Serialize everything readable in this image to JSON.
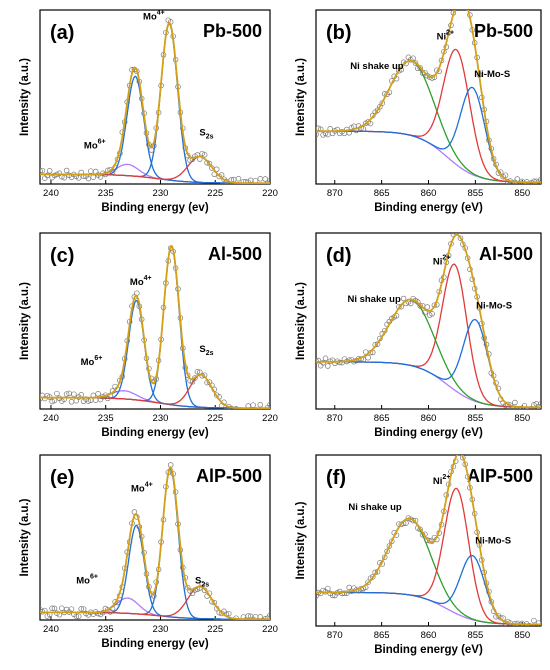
{
  "chart_data": [
    {
      "id": "a",
      "type": "line",
      "panel_label": "(a)",
      "title": "Pb-500",
      "xlabel": "Binding energy (ev)",
      "ylabel": "Intensity (a.u.)",
      "xlim": [
        241,
        220
      ],
      "ylim": [
        0,
        1.08
      ],
      "x_reversed": true,
      "xticks": [
        240,
        235,
        230,
        225,
        220
      ],
      "components": [
        {
          "name": "Mo6+",
          "color": "#b07cff",
          "center": 233.0,
          "height": 0.07,
          "width": 1.0
        },
        {
          "name": "Mo4+ 3d3/2",
          "color": "#1f6fd6",
          "center": 232.3,
          "height": 0.62,
          "width": 0.75
        },
        {
          "name": "Mo4+ 3d5/2",
          "color": "#1f6fd6",
          "center": 229.2,
          "height": 0.97,
          "width": 0.75
        },
        {
          "name": "S2s",
          "color": "#e03a3a",
          "center": 226.4,
          "height": 0.16,
          "width": 1.1
        }
      ],
      "background": {
        "color": "#e8a23a",
        "start": 0.06,
        "end": 0.005
      },
      "fit_color": "#d4a017",
      "annotations": [
        {
          "x": 236.0,
          "y": 0.22,
          "text": "Mo",
          "sup": "6+"
        },
        {
          "x": 230.6,
          "y": 1.02,
          "text": "Mo",
          "sup": "4+"
        },
        {
          "x": 225.8,
          "y": 0.3,
          "text": "S",
          "sub": "2s"
        }
      ]
    },
    {
      "id": "b",
      "type": "line",
      "panel_label": "(b)",
      "title": "Pb-500",
      "xlabel": "Binding energy (eV)",
      "ylabel": "Intensity (a.u.)",
      "xlim": [
        872,
        848
      ],
      "ylim": [
        0,
        1.12
      ],
      "x_reversed": true,
      "xticks": [
        870,
        865,
        860,
        855,
        850
      ],
      "components": [
        {
          "name": "Ni shake up",
          "color": "#2ca02c",
          "center": 861.8,
          "height": 0.48,
          "width": 2.3
        },
        {
          "name": "Ni2+",
          "color": "#e03a3a",
          "center": 857.0,
          "height": 0.74,
          "width": 1.4
        },
        {
          "name": "Ni-Mo-S",
          "color": "#1f6fd6",
          "center": 855.3,
          "height": 0.56,
          "width": 1.3
        }
      ],
      "background": {
        "color": "#b07cff",
        "start": 0.34,
        "end": 0.01
      },
      "fit_color": "#d4a017",
      "annotations": [
        {
          "x": 865.5,
          "y": 0.74,
          "text": "Ni shake up"
        },
        {
          "x": 858.2,
          "y": 0.93,
          "text": "Ni",
          "sup": "2+"
        },
        {
          "x": 853.2,
          "y": 0.69,
          "text": "Ni-Mo-S"
        }
      ]
    },
    {
      "id": "c",
      "type": "line",
      "panel_label": "(c)",
      "title": "Al-500",
      "xlabel": "Binding energy (ev)",
      "ylabel": "Intensity (a.u.)",
      "xlim": [
        241,
        220
      ],
      "ylim": [
        0,
        1.08
      ],
      "x_reversed": true,
      "xticks": [
        240,
        235,
        230,
        225,
        220
      ],
      "components": [
        {
          "name": "Mo6+",
          "color": "#b07cff",
          "center": 233.3,
          "height": 0.05,
          "width": 1.1
        },
        {
          "name": "Mo4+ 3d3/2",
          "color": "#1f6fd6",
          "center": 232.2,
          "height": 0.61,
          "width": 0.7
        },
        {
          "name": "Mo4+ 3d5/2",
          "color": "#1f6fd6",
          "center": 229.0,
          "height": 0.97,
          "width": 0.7
        },
        {
          "name": "S2s",
          "color": "#e03a3a",
          "center": 226.3,
          "height": 0.2,
          "width": 1.0
        }
      ],
      "background": {
        "color": "#e8a23a",
        "start": 0.07,
        "end": 0.005
      },
      "fit_color": "#d4a017",
      "annotations": [
        {
          "x": 236.3,
          "y": 0.27,
          "text": "Mo",
          "sup": "6+"
        },
        {
          "x": 231.8,
          "y": 0.76,
          "text": "Mo",
          "sup": "4+"
        },
        {
          "x": 225.8,
          "y": 0.35,
          "text": "S",
          "sub": "2s"
        }
      ]
    },
    {
      "id": "d",
      "type": "line",
      "panel_label": "(d)",
      "title": "Al-500",
      "xlabel": "Binding energy (eV)",
      "ylabel": "Intensity (a.u.)",
      "xlim": [
        872,
        848
      ],
      "ylim": [
        0,
        1.12
      ],
      "x_reversed": true,
      "xticks": [
        870,
        865,
        860,
        855,
        850
      ],
      "components": [
        {
          "name": "Ni shake up",
          "color": "#2ca02c",
          "center": 861.8,
          "height": 0.42,
          "width": 2.3
        },
        {
          "name": "Ni2+",
          "color": "#e03a3a",
          "center": 857.2,
          "height": 0.8,
          "width": 1.3
        },
        {
          "name": "Ni-Mo-S",
          "color": "#1f6fd6",
          "center": 855.0,
          "height": 0.52,
          "width": 1.3
        }
      ],
      "background": {
        "color": "#b07cff",
        "start": 0.3,
        "end": 0.01
      },
      "fit_color": "#d4a017",
      "annotations": [
        {
          "x": 865.8,
          "y": 0.68,
          "text": "Ni shake up"
        },
        {
          "x": 858.6,
          "y": 0.92,
          "text": "Ni",
          "sup": "2+"
        },
        {
          "x": 853.0,
          "y": 0.64,
          "text": "Ni-Mo-S"
        }
      ]
    },
    {
      "id": "e",
      "type": "line",
      "panel_label": "(e)",
      "title": "AlP-500",
      "xlabel": "Binding energy (ev)",
      "ylabel": "Intensity (a.u.)",
      "xlim": [
        241,
        220
      ],
      "ylim": [
        0,
        1.08
      ],
      "x_reversed": true,
      "xticks": [
        240,
        235,
        230,
        225,
        220
      ],
      "components": [
        {
          "name": "Mo6+",
          "color": "#b07cff",
          "center": 233.0,
          "height": 0.1,
          "width": 1.0
        },
        {
          "name": "Mo4+ 3d3/2",
          "color": "#1f6fd6",
          "center": 232.2,
          "height": 0.58,
          "width": 0.7
        },
        {
          "name": "Mo4+ 3d5/2",
          "color": "#1f6fd6",
          "center": 229.1,
          "height": 0.97,
          "width": 0.7
        },
        {
          "name": "S2s",
          "color": "#e03a3a",
          "center": 226.4,
          "height": 0.21,
          "width": 1.1
        }
      ],
      "background": {
        "color": "#e8a23a",
        "start": 0.05,
        "end": 0.005
      },
      "fit_color": "#d4a017",
      "annotations": [
        {
          "x": 236.7,
          "y": 0.24,
          "text": "Mo",
          "sup": "6+"
        },
        {
          "x": 231.7,
          "y": 0.84,
          "text": "Mo",
          "sup": "4+"
        },
        {
          "x": 226.2,
          "y": 0.24,
          "text": "S",
          "sub": "2s"
        }
      ]
    },
    {
      "id": "f",
      "type": "line",
      "panel_label": "(f)",
      "title": "AlP-500",
      "xlabel": "Binding energy (eV)",
      "ylabel": "Intensity (a.u.)",
      "xlim": [
        872,
        848
      ],
      "ylim": [
        0,
        1.12
      ],
      "x_reversed": true,
      "xticks": [
        870,
        865,
        860,
        855,
        850
      ],
      "components": [
        {
          "name": "Ni shake up",
          "color": "#2ca02c",
          "center": 862.0,
          "height": 0.5,
          "width": 2.2
        },
        {
          "name": "Ni2+",
          "color": "#e03a3a",
          "center": 857.0,
          "height": 0.82,
          "width": 1.3
        },
        {
          "name": "Ni-Mo-S",
          "color": "#1f6fd6",
          "center": 855.3,
          "height": 0.42,
          "width": 1.3
        }
      ],
      "background": {
        "color": "#b07cff",
        "start": 0.22,
        "end": 0.01
      },
      "fit_color": "#d4a017",
      "annotations": [
        {
          "x": 865.7,
          "y": 0.76,
          "text": "Ni shake up"
        },
        {
          "x": 858.6,
          "y": 0.93,
          "text": "Ni",
          "sup": "2+"
        },
        {
          "x": 853.1,
          "y": 0.54,
          "text": "Ni-Mo-S"
        }
      ]
    }
  ]
}
